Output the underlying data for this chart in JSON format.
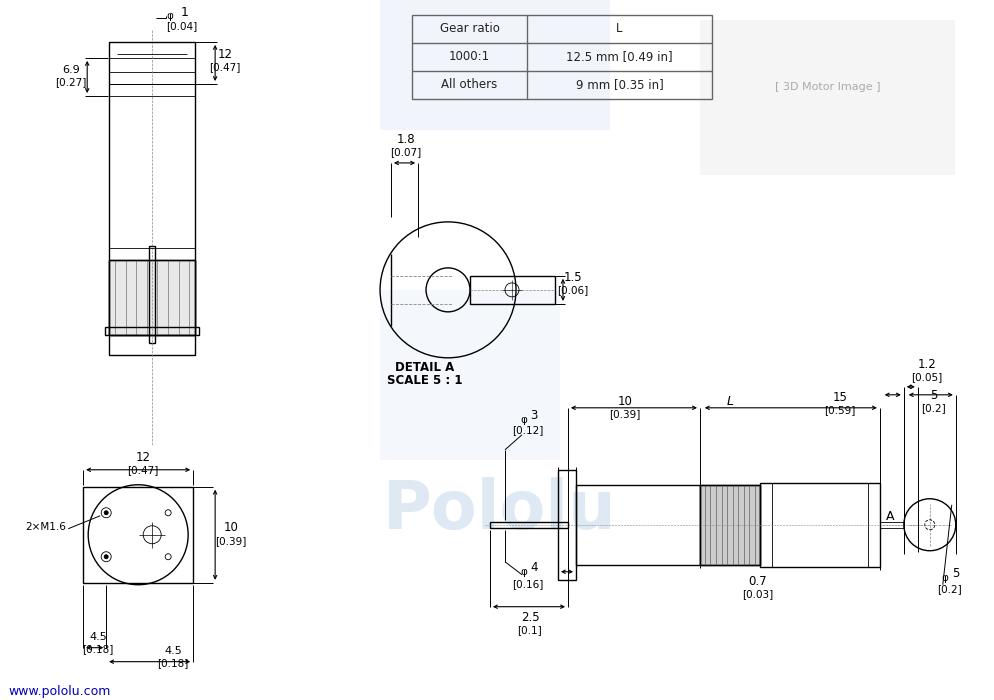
{
  "bg_color": "#ffffff",
  "line_color": "#000000",
  "dim_color": "#000000",
  "blue_color": "#1a1aff",
  "light_blue_bg": "#c8daf0",
  "table": {
    "headers": [
      "Gear ratio",
      "L"
    ],
    "rows": [
      [
        "1000:1",
        "12.5 mm [0.49 in]"
      ],
      [
        "All others",
        "9 mm [0.35 in]"
      ]
    ]
  },
  "website": "www.pololu.com",
  "detail_label": "DETAIL A\nSCALE 5 : 1",
  "pololu_watermark": "Pololu",
  "watermark_color": "#c0d4e8"
}
